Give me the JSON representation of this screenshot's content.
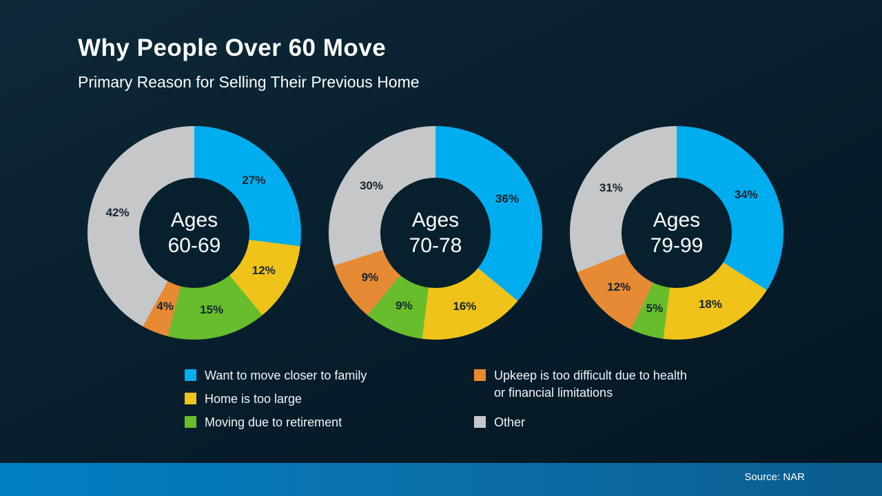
{
  "chart_data": {
    "type": "pie",
    "donut": true,
    "title": "Why People Over 60 Move",
    "subtitle": "Primary Reason for Selling Their Previous Home",
    "start_angle_deg": 0,
    "direction": "clockwise",
    "legend_position": "bottom",
    "categories": [
      "Want to move closer to family",
      "Home is too large",
      "Moving due to retirement",
      "Upkeep is too difficult due to health or financial limitations",
      "Other"
    ],
    "colors": [
      "#00ADEE",
      "#EFC319",
      "#67BD2C",
      "#E68A33",
      "#C5C7C9"
    ],
    "charts": [
      {
        "center": [
          "Ages",
          "60-69"
        ],
        "values": [
          27,
          12,
          15,
          4,
          42
        ]
      },
      {
        "center": [
          "Ages",
          "70-78"
        ],
        "values": [
          36,
          16,
          9,
          9,
          30
        ]
      },
      {
        "center": [
          "Ages",
          "79-99"
        ],
        "values": [
          34,
          18,
          5,
          12,
          31
        ]
      }
    ]
  },
  "footer": {
    "source_label": "Source: NAR"
  },
  "theme": {
    "background": "#081F2D",
    "donut_hole": "#07202E",
    "footer_left": "#0080C4",
    "footer_right": "#0A5C8E",
    "text": "#FFFFFF",
    "slice_label_text": "#15242F"
  }
}
